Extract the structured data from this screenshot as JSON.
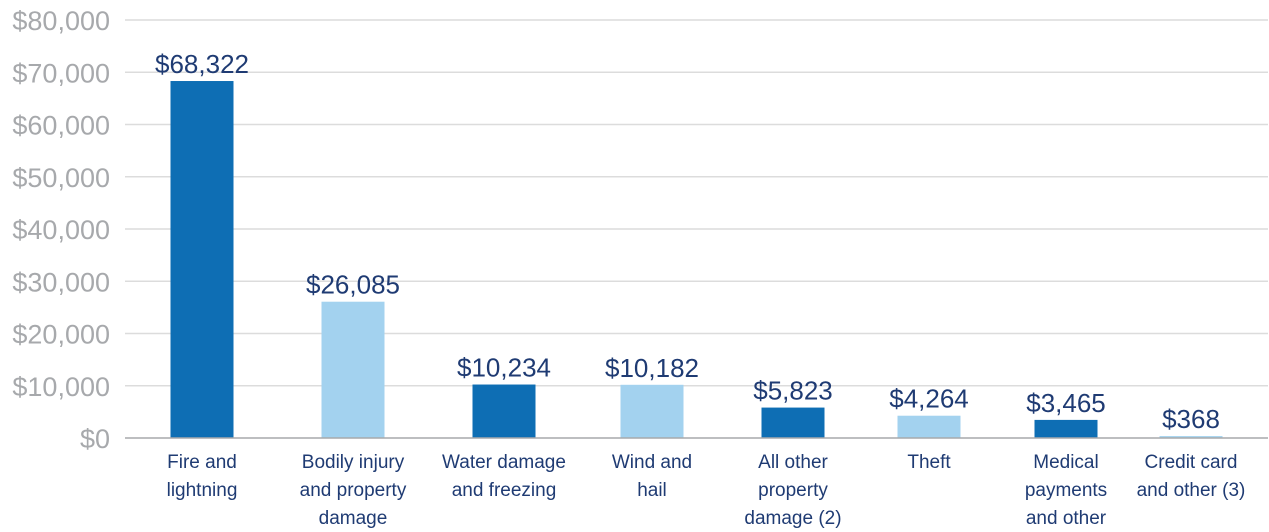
{
  "chart_data": {
    "type": "bar",
    "title": "",
    "xlabel": "",
    "ylabel": "",
    "ylim": [
      0,
      80000
    ],
    "yticks": [
      "$0",
      "$10,000",
      "$20,000",
      "$30,000",
      "$40,000",
      "$50,000",
      "$60,000",
      "$70,000",
      "$80,000"
    ],
    "grid": true,
    "categories": [
      [
        "Fire and",
        "lightning"
      ],
      [
        "Bodily injury",
        "and property",
        "damage"
      ],
      [
        "Water damage",
        "and freezing"
      ],
      [
        "Wind and",
        "hail"
      ],
      [
        "All other",
        "property",
        "damage (2)"
      ],
      [
        "Theft"
      ],
      [
        "Medical",
        "payments",
        "and other"
      ],
      [
        "Credit card",
        "and other (3)"
      ]
    ],
    "values": [
      68322,
      26085,
      10234,
      10182,
      5823,
      4264,
      3465,
      368
    ],
    "value_labels": [
      "$68,322",
      "$26,085",
      "$10,234",
      "$10,182",
      "$5,823",
      "$4,264",
      "$3,465",
      "$368"
    ],
    "colors": [
      "#0e6eb4",
      "#a3d2ef",
      "#0e6eb4",
      "#a3d2ef",
      "#0e6eb4",
      "#a3d2ef",
      "#0e6eb4",
      "#a3d2ef"
    ]
  }
}
